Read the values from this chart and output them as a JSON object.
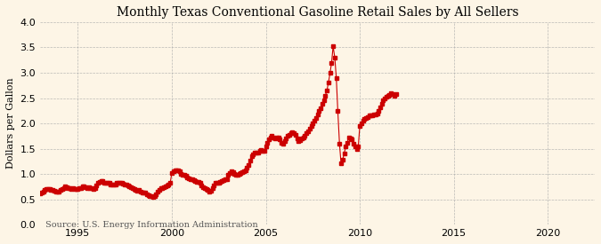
{
  "title": "Monthly Texas Conventional Gasoline Retail Sales by All Sellers",
  "ylabel": "Dollars per Gallon",
  "source": "Source: U.S. Energy Information Administration",
  "background_color": "#fdf5e6",
  "line_color": "#cc0000",
  "xlim": [
    1993.0,
    2022.5
  ],
  "ylim": [
    0.0,
    4.0
  ],
  "xticks": [
    1995,
    2000,
    2005,
    2010,
    2015,
    2020
  ],
  "yticks": [
    0.0,
    0.5,
    1.0,
    1.5,
    2.0,
    2.5,
    3.0,
    3.5,
    4.0
  ],
  "prices": [
    [
      1993.0,
      0.62
    ],
    [
      1993.08,
      0.63
    ],
    [
      1993.17,
      0.65
    ],
    [
      1993.25,
      0.69
    ],
    [
      1993.33,
      0.7
    ],
    [
      1993.42,
      0.71
    ],
    [
      1993.5,
      0.7
    ],
    [
      1993.58,
      0.69
    ],
    [
      1993.67,
      0.68
    ],
    [
      1993.75,
      0.67
    ],
    [
      1993.83,
      0.66
    ],
    [
      1993.92,
      0.65
    ],
    [
      1994.0,
      0.66
    ],
    [
      1994.08,
      0.68
    ],
    [
      1994.17,
      0.7
    ],
    [
      1994.25,
      0.73
    ],
    [
      1994.33,
      0.75
    ],
    [
      1994.42,
      0.74
    ],
    [
      1994.5,
      0.73
    ],
    [
      1994.58,
      0.72
    ],
    [
      1994.67,
      0.71
    ],
    [
      1994.75,
      0.72
    ],
    [
      1994.83,
      0.71
    ],
    [
      1994.92,
      0.7
    ],
    [
      1995.0,
      0.71
    ],
    [
      1995.08,
      0.72
    ],
    [
      1995.17,
      0.73
    ],
    [
      1995.25,
      0.75
    ],
    [
      1995.33,
      0.76
    ],
    [
      1995.42,
      0.74
    ],
    [
      1995.5,
      0.73
    ],
    [
      1995.58,
      0.74
    ],
    [
      1995.67,
      0.73
    ],
    [
      1995.75,
      0.72
    ],
    [
      1995.83,
      0.71
    ],
    [
      1995.92,
      0.72
    ],
    [
      1996.0,
      0.78
    ],
    [
      1996.08,
      0.82
    ],
    [
      1996.17,
      0.85
    ],
    [
      1996.25,
      0.87
    ],
    [
      1996.33,
      0.86
    ],
    [
      1996.42,
      0.83
    ],
    [
      1996.5,
      0.82
    ],
    [
      1996.58,
      0.83
    ],
    [
      1996.67,
      0.82
    ],
    [
      1996.75,
      0.8
    ],
    [
      1996.83,
      0.79
    ],
    [
      1996.92,
      0.8
    ],
    [
      1997.0,
      0.8
    ],
    [
      1997.08,
      0.82
    ],
    [
      1997.17,
      0.83
    ],
    [
      1997.25,
      0.83
    ],
    [
      1997.33,
      0.82
    ],
    [
      1997.42,
      0.81
    ],
    [
      1997.5,
      0.8
    ],
    [
      1997.58,
      0.79
    ],
    [
      1997.67,
      0.78
    ],
    [
      1997.75,
      0.76
    ],
    [
      1997.83,
      0.74
    ],
    [
      1997.92,
      0.72
    ],
    [
      1998.0,
      0.7
    ],
    [
      1998.08,
      0.68
    ],
    [
      1998.17,
      0.67
    ],
    [
      1998.25,
      0.68
    ],
    [
      1998.33,
      0.66
    ],
    [
      1998.42,
      0.64
    ],
    [
      1998.5,
      0.63
    ],
    [
      1998.58,
      0.63
    ],
    [
      1998.67,
      0.6
    ],
    [
      1998.75,
      0.58
    ],
    [
      1998.83,
      0.57
    ],
    [
      1998.92,
      0.56
    ],
    [
      1999.0,
      0.55
    ],
    [
      1999.08,
      0.56
    ],
    [
      1999.17,
      0.6
    ],
    [
      1999.25,
      0.65
    ],
    [
      1999.33,
      0.68
    ],
    [
      1999.42,
      0.72
    ],
    [
      1999.5,
      0.73
    ],
    [
      1999.58,
      0.74
    ],
    [
      1999.67,
      0.76
    ],
    [
      1999.75,
      0.78
    ],
    [
      1999.83,
      0.8
    ],
    [
      1999.92,
      0.83
    ],
    [
      2000.0,
      1.02
    ],
    [
      2000.08,
      1.06
    ],
    [
      2000.17,
      1.08
    ],
    [
      2000.25,
      1.08
    ],
    [
      2000.33,
      1.07
    ],
    [
      2000.42,
      1.05
    ],
    [
      2000.5,
      1.0
    ],
    [
      2000.58,
      0.98
    ],
    [
      2000.67,
      0.98
    ],
    [
      2000.75,
      0.97
    ],
    [
      2000.83,
      0.94
    ],
    [
      2000.92,
      0.92
    ],
    [
      2001.0,
      0.9
    ],
    [
      2001.08,
      0.89
    ],
    [
      2001.17,
      0.88
    ],
    [
      2001.25,
      0.86
    ],
    [
      2001.33,
      0.85
    ],
    [
      2001.42,
      0.84
    ],
    [
      2001.5,
      0.82
    ],
    [
      2001.58,
      0.78
    ],
    [
      2001.67,
      0.74
    ],
    [
      2001.75,
      0.72
    ],
    [
      2001.83,
      0.7
    ],
    [
      2001.92,
      0.68
    ],
    [
      2002.0,
      0.65
    ],
    [
      2002.08,
      0.67
    ],
    [
      2002.17,
      0.72
    ],
    [
      2002.25,
      0.78
    ],
    [
      2002.33,
      0.82
    ],
    [
      2002.42,
      0.83
    ],
    [
      2002.5,
      0.83
    ],
    [
      2002.58,
      0.84
    ],
    [
      2002.67,
      0.86
    ],
    [
      2002.75,
      0.88
    ],
    [
      2002.83,
      0.89
    ],
    [
      2002.92,
      0.9
    ],
    [
      2003.0,
      0.98
    ],
    [
      2003.08,
      1.02
    ],
    [
      2003.17,
      1.05
    ],
    [
      2003.25,
      1.03
    ],
    [
      2003.33,
      1.0
    ],
    [
      2003.42,
      0.98
    ],
    [
      2003.5,
      0.98
    ],
    [
      2003.58,
      1.0
    ],
    [
      2003.67,
      1.02
    ],
    [
      2003.75,
      1.04
    ],
    [
      2003.83,
      1.06
    ],
    [
      2003.92,
      1.08
    ],
    [
      2004.0,
      1.12
    ],
    [
      2004.08,
      1.18
    ],
    [
      2004.17,
      1.26
    ],
    [
      2004.25,
      1.35
    ],
    [
      2004.33,
      1.38
    ],
    [
      2004.42,
      1.42
    ],
    [
      2004.5,
      1.42
    ],
    [
      2004.58,
      1.43
    ],
    [
      2004.67,
      1.46
    ],
    [
      2004.75,
      1.48
    ],
    [
      2004.83,
      1.46
    ],
    [
      2004.92,
      1.45
    ],
    [
      2005.0,
      1.55
    ],
    [
      2005.08,
      1.62
    ],
    [
      2005.17,
      1.68
    ],
    [
      2005.25,
      1.72
    ],
    [
      2005.33,
      1.75
    ],
    [
      2005.42,
      1.72
    ],
    [
      2005.5,
      1.7
    ],
    [
      2005.58,
      1.72
    ],
    [
      2005.67,
      1.72
    ],
    [
      2005.75,
      1.68
    ],
    [
      2005.83,
      1.62
    ],
    [
      2005.92,
      1.6
    ],
    [
      2006.0,
      1.65
    ],
    [
      2006.08,
      1.7
    ],
    [
      2006.17,
      1.75
    ],
    [
      2006.25,
      1.78
    ],
    [
      2006.33,
      1.8
    ],
    [
      2006.42,
      1.82
    ],
    [
      2006.5,
      1.8
    ],
    [
      2006.58,
      1.78
    ],
    [
      2006.67,
      1.7
    ],
    [
      2006.75,
      1.65
    ],
    [
      2006.83,
      1.66
    ],
    [
      2006.92,
      1.7
    ],
    [
      2007.0,
      1.72
    ],
    [
      2007.08,
      1.76
    ],
    [
      2007.17,
      1.8
    ],
    [
      2007.25,
      1.84
    ],
    [
      2007.33,
      1.9
    ],
    [
      2007.42,
      1.95
    ],
    [
      2007.5,
      2.0
    ],
    [
      2007.58,
      2.05
    ],
    [
      2007.67,
      2.1
    ],
    [
      2007.75,
      2.18
    ],
    [
      2007.83,
      2.25
    ],
    [
      2007.92,
      2.3
    ],
    [
      2008.0,
      2.38
    ],
    [
      2008.08,
      2.45
    ],
    [
      2008.17,
      2.55
    ],
    [
      2008.25,
      2.65
    ],
    [
      2008.33,
      2.8
    ],
    [
      2008.42,
      3.0
    ],
    [
      2008.5,
      3.2
    ],
    [
      2008.58,
      3.52
    ],
    [
      2008.67,
      3.3
    ],
    [
      2008.75,
      2.9
    ],
    [
      2008.83,
      2.25
    ],
    [
      2008.92,
      1.6
    ],
    [
      2009.0,
      1.22
    ],
    [
      2009.08,
      1.28
    ],
    [
      2009.17,
      1.4
    ],
    [
      2009.25,
      1.55
    ],
    [
      2009.33,
      1.62
    ],
    [
      2009.42,
      1.72
    ],
    [
      2009.5,
      1.7
    ],
    [
      2009.58,
      1.68
    ],
    [
      2009.67,
      1.6
    ],
    [
      2009.75,
      1.55
    ],
    [
      2009.83,
      1.5
    ],
    [
      2009.92,
      1.55
    ],
    [
      2010.0,
      1.95
    ],
    [
      2010.08,
      2.0
    ],
    [
      2010.17,
      2.05
    ],
    [
      2010.25,
      2.08
    ],
    [
      2010.33,
      2.1
    ],
    [
      2010.42,
      2.12
    ],
    [
      2010.5,
      2.15
    ],
    [
      2010.58,
      2.16
    ],
    [
      2010.67,
      2.15
    ],
    [
      2010.75,
      2.18
    ],
    [
      2010.83,
      2.18
    ],
    [
      2010.92,
      2.2
    ],
    [
      2011.0,
      2.25
    ],
    [
      2011.08,
      2.32
    ],
    [
      2011.17,
      2.38
    ],
    [
      2011.25,
      2.45
    ],
    [
      2011.33,
      2.5
    ],
    [
      2011.42,
      2.52
    ],
    [
      2011.5,
      2.55
    ],
    [
      2011.58,
      2.57
    ],
    [
      2011.67,
      2.6
    ],
    [
      2011.75,
      2.58
    ],
    [
      2011.83,
      2.55
    ],
    [
      2011.92,
      2.58
    ]
  ]
}
